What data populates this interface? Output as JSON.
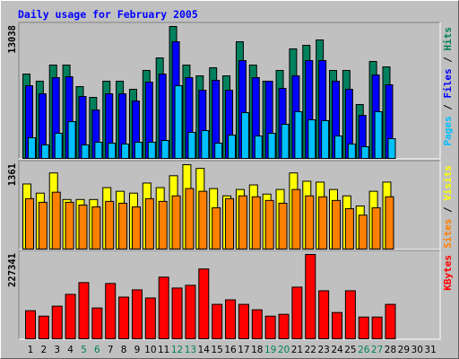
{
  "chart_data": [
    {
      "type": "bar",
      "title": "Daily usage for February 2005",
      "ylim": [
        0,
        13038
      ],
      "yticks": [
        13038
      ],
      "legend_separator": " / ",
      "series": [
        {
          "name": "Pages",
          "color": "#00C0FF",
          "values": [
            2040,
            1330,
            2483,
            3636,
            1330,
            1597,
            1508,
            1419,
            1597,
            1597,
            1774,
            7184,
            2572,
            2750,
            1508,
            2306,
            4523,
            2217,
            2483,
            3370,
            4612,
            3814,
            3725,
            2217,
            1419,
            1153,
            4612,
            1951,
            null,
            null,
            null
          ]
        },
        {
          "name": "Files",
          "color": "#0000FF",
          "values": [
            7184,
            6386,
            7983,
            8071,
            6120,
            4790,
            6386,
            6386,
            5676,
            7539,
            8337,
            11530,
            7983,
            6741,
            7716,
            6741,
            9668,
            7983,
            7630,
            6918,
            8160,
            9668,
            9668,
            7630,
            6830,
            4257,
            8249,
            7273,
            null,
            null,
            null
          ]
        },
        {
          "name": "Hits",
          "color": "#00805C",
          "values": [
            8337,
            7630,
            9224,
            9224,
            7096,
            6031,
            7630,
            7630,
            6830,
            8692,
            9934,
            13038,
            9224,
            8160,
            8958,
            8160,
            11530,
            9224,
            7630,
            8692,
            10821,
            11175,
            11708,
            8692,
            8692,
            5322,
            9579,
            9047,
            null,
            null,
            null
          ]
        }
      ]
    },
    {
      "type": "bar",
      "ylim": [
        0,
        1361
      ],
      "yticks": [
        1361
      ],
      "legend_separator": " / ",
      "series": [
        {
          "name": "Sites",
          "color": "#FF8000",
          "values": [
            813,
            754,
            917,
            754,
            710,
            680,
            769,
            739,
            680,
            813,
            769,
            858,
            976,
            932,
            665,
            813,
            858,
            843,
            784,
            739,
            961,
            858,
            843,
            784,
            651,
            547,
            665,
            843,
            null,
            null,
            null
          ]
        },
        {
          "name": "Visits",
          "color": "#FFFF00",
          "values": [
            1050,
            902,
            1228,
            799,
            799,
            799,
            991,
            932,
            902,
            1065,
            991,
            1183,
            1361,
            1301,
            976,
            858,
            961,
            1035,
            887,
            961,
            1228,
            1094,
            1080,
            961,
            858,
            695,
            932,
            1080,
            null,
            null,
            null
          ]
        }
      ]
    },
    {
      "type": "bar",
      "ylim": [
        0,
        227341
      ],
      "yticks": [
        227341
      ],
      "series": [
        {
          "name": "KBytes",
          "color": "#FF0000",
          "values": [
            75771,
            61100,
            87990,
            119750,
            151540,
            83100,
            149100,
            112420,
            131980,
            109980,
            166190,
            136860,
            144200,
            188190,
            92870,
            105090,
            92870,
            78210,
            61100,
            65990,
            139310,
            227341,
            129530,
            70880,
            129530,
            58660,
            58660,
            92870,
            null,
            null,
            null
          ]
        }
      ],
      "categories": [
        1,
        2,
        3,
        4,
        5,
        6,
        7,
        8,
        9,
        10,
        11,
        12,
        13,
        14,
        15,
        16,
        17,
        18,
        19,
        20,
        21,
        22,
        23,
        24,
        25,
        26,
        27,
        28,
        29,
        30,
        31
      ],
      "category_color": "#000000",
      "highlight_color": "#00805C",
      "highlight_categories": [
        5,
        6,
        12,
        13,
        19,
        20,
        26,
        27
      ]
    }
  ]
}
